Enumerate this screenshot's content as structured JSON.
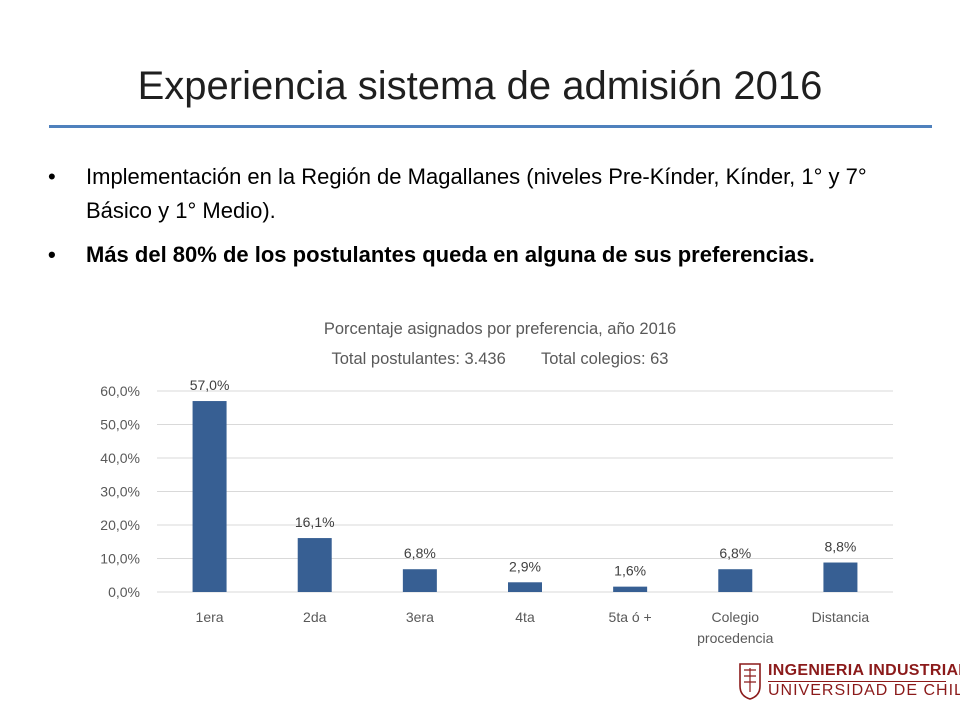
{
  "slide": {
    "title": "Experiencia sistema de admisión 2016",
    "bullets": [
      {
        "text": "Implementación en la Región de Magallanes (niveles Pre-Kínder, Kínder, 1° y 7° Básico y 1° Medio).",
        "bold": false
      },
      {
        "text": "Más del 80% de los postulantes queda en alguna de sus preferencias.",
        "bold": true
      }
    ],
    "bullet_glyph": "•"
  },
  "chart_data": {
    "type": "bar",
    "title": "Porcentaje asignados por preferencia, año 2016",
    "subtitle_parts": [
      "Total postulantes: 3.436",
      "Total colegios: 63"
    ],
    "categories": [
      "1era",
      "2da",
      "3era",
      "4ta",
      "5ta ó +",
      "Colegio procedencia",
      "Distancia"
    ],
    "values": [
      57.0,
      16.1,
      6.8,
      2.9,
      1.6,
      6.8,
      8.8
    ],
    "data_labels": [
      "57,0%",
      "16,1%",
      "6,8%",
      "2,9%",
      "1,6%",
      "6,8%",
      "8,8%"
    ],
    "yticks": [
      "0,0%",
      "10,0%",
      "20,0%",
      "30,0%",
      "40,0%",
      "50,0%",
      "60,0%"
    ],
    "ylim": [
      0,
      60
    ],
    "grid": true,
    "bar_color": "#375f93",
    "xlabel": "",
    "ylabel": ""
  },
  "logo": {
    "line1": "INGENIERIA INDUSTRIAL",
    "line2": "UNIVERSIDAD DE CHILE",
    "color": "#8b1a1a"
  }
}
